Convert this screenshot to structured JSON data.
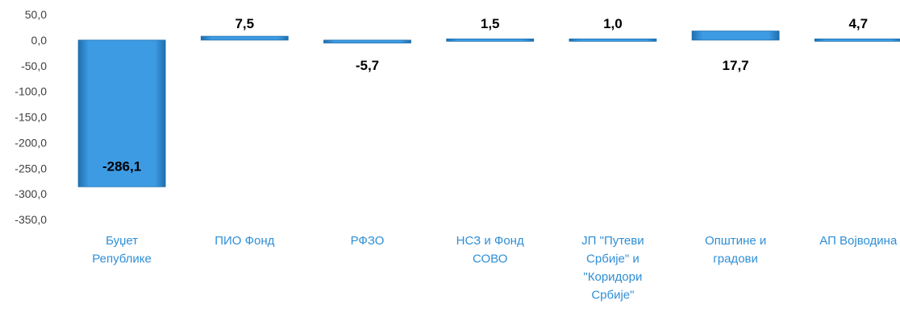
{
  "chart_data": {
    "type": "bar",
    "title": "",
    "xlabel": "",
    "ylabel": "",
    "ylim": [
      -350,
      50
    ],
    "yticks": [
      "50,0",
      "0,0",
      "-50,0",
      "-100,0",
      "-150,0",
      "-200,0",
      "-250,0",
      "-300,0",
      "-350,0"
    ],
    "ytick_values": [
      50,
      0,
      -50,
      -100,
      -150,
      -200,
      -250,
      -300,
      -350
    ],
    "grid": false,
    "legend": "none",
    "categories": [
      [
        "Буџет",
        "Републике"
      ],
      [
        "ПИО Фонд"
      ],
      [
        "РФЗО"
      ],
      [
        "НСЗ и Фонд",
        "СОВО"
      ],
      [
        "ЈП \"Путеви",
        "Србије\" и",
        "\"Коридори",
        "Србије\""
      ],
      [
        "Општине и",
        "градови"
      ],
      [
        "АП Војводина"
      ]
    ],
    "values": [
      -286.1,
      7.5,
      -5.7,
      1.5,
      1.0,
      17.7,
      4.7
    ],
    "data_labels": [
      "-286,1",
      "7,5",
      "-5,7",
      "1,5",
      "1,0",
      "17,7",
      "4,7"
    ],
    "colors": {
      "bar": "#3d9be3",
      "bar_dark": "#1f6fae",
      "category_text": "#2f8fd6",
      "axis_text": "#404040"
    }
  }
}
